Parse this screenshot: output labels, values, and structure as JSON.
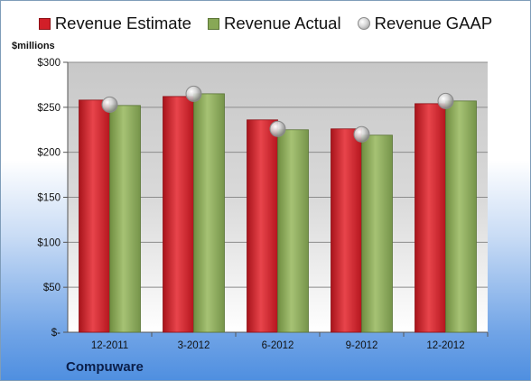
{
  "company": "Compuware",
  "chart_data": {
    "type": "bar",
    "ylabel": "$millions",
    "categories": [
      "12-2011",
      "3-2012",
      "6-2012",
      "9-2012",
      "12-2012"
    ],
    "series": [
      {
        "name": "Revenue Estimate",
        "values": [
          258,
          262,
          236,
          226,
          254
        ],
        "color": "#d21f28"
      },
      {
        "name": "Revenue Actual",
        "values": [
          252,
          265,
          225,
          219,
          257
        ],
        "color": "#88a856"
      },
      {
        "name": "Revenue GAAP",
        "values": [
          253,
          265,
          226,
          220,
          257
        ],
        "color": "#b8b8b8"
      }
    ],
    "ylim": [
      0,
      300
    ],
    "yticks": [
      0,
      50,
      100,
      150,
      200,
      250,
      300
    ],
    "ytick_labels": [
      "$-",
      "$50",
      "$100",
      "$150",
      "$200",
      "$250",
      "$300"
    ],
    "grid": true,
    "legend": "top"
  }
}
